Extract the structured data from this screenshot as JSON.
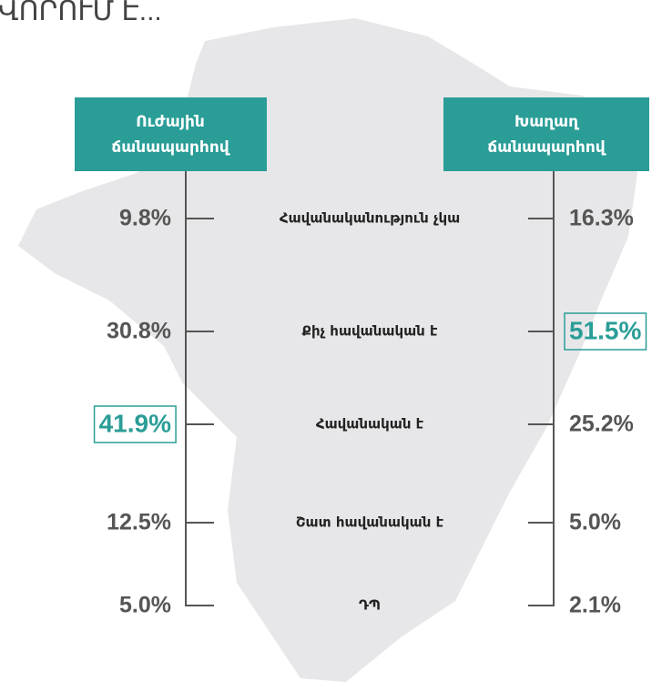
{
  "header": {
    "title": "ՎՈՐՈՒՄ Է..."
  },
  "columns": [
    {
      "heading": [
        "Ուժային",
        "ճանապարհով"
      ],
      "values": [
        "9.8%",
        "30.8%",
        "41.9%",
        "12.5%",
        "5.0%"
      ],
      "highlight": [
        false,
        false,
        true,
        false,
        false
      ]
    },
    {
      "heading": [
        "Խաղաղ",
        "ճանապարհով"
      ],
      "values": [
        "16.3%",
        "51.5%",
        "25.2%",
        "5.0%",
        "2.1%"
      ],
      "highlight": [
        false,
        true,
        false,
        false,
        false
      ]
    }
  ],
  "rows": [
    "Հավանականություն չկա",
    "Քիչ հավանական է",
    "Հավանական է",
    "Շատ հավանական է",
    "ԴՊ"
  ],
  "accent": "#2a9d97"
}
